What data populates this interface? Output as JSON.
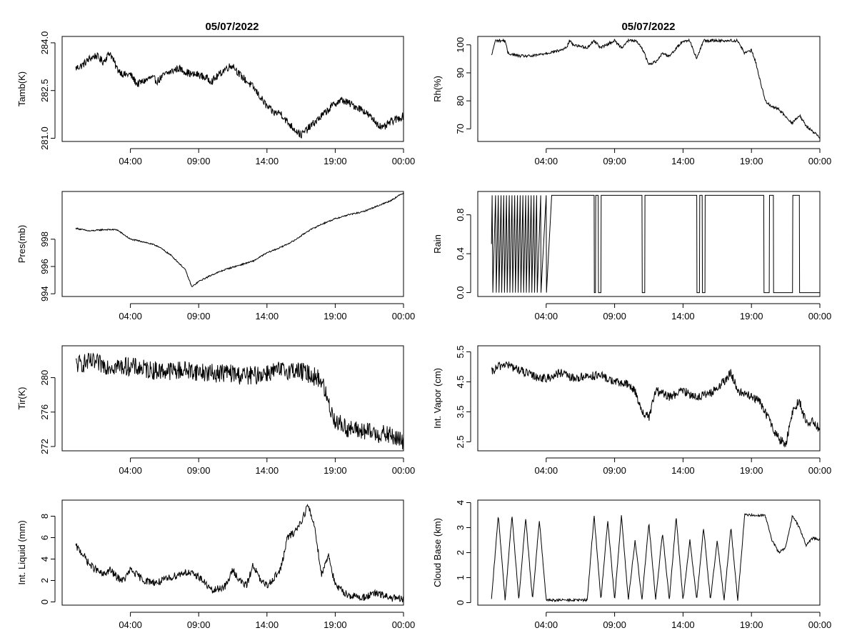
{
  "figure": {
    "left_title": "05/07/2022",
    "right_title": "05/07/2022"
  },
  "chart_data": [
    {
      "type": "line",
      "ylabel": "Tamb(K)",
      "yticks": [
        281.0,
        282.5,
        284.0
      ],
      "yticklabels": [
        "281.0",
        "282.5",
        "284.0"
      ],
      "xlim": [
        -1,
        24
      ],
      "ylim": [
        280.9,
        284.2
      ],
      "xticks": [
        4,
        9,
        14,
        19,
        24
      ],
      "xticklabels": [
        "04:00",
        "09:00",
        "14:00",
        "19:00",
        "00:00"
      ],
      "x": [
        0,
        0.5,
        1,
        1.5,
        2,
        2.5,
        3,
        3.5,
        4,
        4.5,
        5,
        5.5,
        6,
        6.5,
        7,
        7.5,
        8,
        8.5,
        9,
        9.5,
        10,
        10.5,
        11,
        11.5,
        12,
        12.5,
        13,
        13.5,
        14,
        14.5,
        15,
        15.5,
        16,
        16.5,
        17,
        17.5,
        18,
        18.5,
        19,
        19.5,
        20,
        20.5,
        21,
        21.5,
        22,
        22.5,
        23,
        23.5,
        24
      ],
      "y": [
        283.2,
        283.3,
        283.5,
        283.6,
        283.4,
        283.7,
        283.2,
        283.0,
        283.0,
        282.7,
        282.8,
        282.9,
        282.8,
        283.0,
        283.1,
        283.2,
        283.1,
        283.0,
        283.0,
        282.9,
        282.8,
        283.0,
        283.2,
        283.3,
        283.0,
        282.8,
        282.6,
        282.3,
        282.0,
        281.8,
        281.8,
        281.5,
        281.3,
        281.1,
        281.3,
        281.5,
        281.7,
        281.9,
        282.1,
        282.2,
        282.1,
        282.0,
        281.9,
        281.7,
        281.5,
        281.3,
        281.5,
        281.6,
        281.7
      ],
      "noise": 0.12
    },
    {
      "type": "line",
      "ylabel": "Pres(mb)",
      "yticks": [
        994,
        996,
        998
      ],
      "yticklabels": [
        "994",
        "996",
        "998"
      ],
      "xlim": [
        -1,
        24
      ],
      "ylim": [
        993.8,
        1001.5
      ],
      "xticks": [
        4,
        9,
        14,
        19,
        24
      ],
      "xticklabels": [
        "04:00",
        "09:00",
        "14:00",
        "19:00",
        "00:00"
      ],
      "x": [
        0,
        1,
        2,
        3,
        4,
        5,
        6,
        7,
        8,
        8.5,
        9,
        10,
        11,
        12,
        13,
        14,
        15,
        16,
        17,
        18,
        19,
        20,
        21,
        22,
        23,
        24
      ],
      "y": [
        998.8,
        998.6,
        998.7,
        998.7,
        998.0,
        997.8,
        997.5,
        996.8,
        995.8,
        994.5,
        994.9,
        995.4,
        995.8,
        996.1,
        996.4,
        997.0,
        997.4,
        997.9,
        998.6,
        999.1,
        999.5,
        999.8,
        1000.0,
        1000.4,
        1000.8,
        1001.4
      ],
      "noise": 0.05
    },
    {
      "type": "line",
      "ylabel": "Tir(K)",
      "yticks": [
        272,
        276,
        280
      ],
      "yticklabels": [
        "272",
        "276",
        "280"
      ],
      "xlim": [
        -1,
        24
      ],
      "ylim": [
        271.5,
        283.7
      ],
      "xticks": [
        4,
        9,
        14,
        19,
        24
      ],
      "xticklabels": [
        "04:00",
        "09:00",
        "14:00",
        "19:00",
        "00:00"
      ],
      "x": [
        0,
        1,
        2,
        3,
        4,
        5,
        6,
        7,
        8,
        9,
        10,
        11,
        12,
        13,
        14,
        15,
        16,
        17,
        18,
        18.5,
        19,
        19.5,
        20,
        21,
        22,
        23,
        24
      ],
      "y": [
        281.5,
        281.8,
        281.5,
        281.3,
        281.3,
        281.0,
        280.8,
        280.8,
        280.9,
        280.7,
        280.5,
        280.6,
        280.3,
        280.2,
        280.6,
        280.8,
        280.9,
        280.5,
        279.7,
        277.0,
        275.0,
        274.5,
        274.0,
        273.8,
        273.5,
        273.3,
        272.5
      ],
      "noise": 1.1
    },
    {
      "type": "line",
      "ylabel": "Int. Liquid (mm)",
      "yticks": [
        0,
        2,
        4,
        6,
        8
      ],
      "yticklabels": [
        "0",
        "2",
        "4",
        "6",
        "8"
      ],
      "xlim": [
        -1,
        24
      ],
      "ylim": [
        -0.3,
        9.5
      ],
      "xticks": [
        4,
        9,
        14,
        19,
        24
      ],
      "xticklabels": [
        "04:00",
        "09:00",
        "14:00",
        "19:00",
        "00:00"
      ],
      "x": [
        0,
        0.5,
        1,
        2,
        2.5,
        3,
        3.5,
        4,
        5,
        6,
        7,
        8,
        9,
        10,
        11,
        11.5,
        12,
        12.5,
        13,
        13.5,
        14,
        15,
        15.5,
        16,
        16.5,
        17,
        17.5,
        18,
        18.5,
        19,
        20,
        21,
        22,
        23,
        24
      ],
      "y": [
        5.2,
        4.5,
        3.5,
        2.5,
        3.0,
        2.3,
        2.0,
        3.0,
        2.0,
        1.8,
        2.3,
        2.8,
        2.4,
        1.0,
        1.5,
        3.0,
        2.0,
        1.5,
        3.5,
        2.0,
        1.5,
        3.0,
        6.0,
        6.5,
        7.5,
        9.0,
        7.0,
        2.5,
        4.5,
        1.5,
        0.6,
        0.4,
        0.8,
        0.4,
        0.2
      ],
      "noise": 0.35
    },
    {
      "type": "line",
      "ylabel": "Rh(%)",
      "yticks": [
        70,
        80,
        90,
        100
      ],
      "yticklabels": [
        "70",
        "80",
        "90",
        "100"
      ],
      "xlim": [
        -1,
        24
      ],
      "ylim": [
        65.5,
        103
      ],
      "xticks": [
        4,
        9,
        14,
        19,
        24
      ],
      "xticklabels": [
        "04:00",
        "09:00",
        "14:00",
        "19:00",
        "00:00"
      ],
      "x": [
        0,
        0.2,
        0.3,
        1,
        1.2,
        2,
        3,
        4,
        5,
        5.5,
        5.7,
        6,
        7,
        7.5,
        8,
        9,
        9.5,
        10,
        10.5,
        11,
        11.5,
        12,
        12.5,
        13,
        14,
        14.5,
        15,
        15.5,
        16,
        17,
        18,
        18.5,
        19,
        19.3,
        20,
        20.5,
        21,
        22,
        22.5,
        23,
        23.5,
        24
      ],
      "y": [
        96,
        100,
        101.5,
        101.5,
        97,
        96,
        96,
        97,
        98,
        99,
        101.5,
        100,
        99,
        101.5,
        99,
        101.5,
        99,
        101.5,
        101.5,
        99,
        93,
        94,
        97,
        96,
        101.5,
        101.5,
        95,
        101.5,
        101.5,
        101.5,
        101.5,
        97,
        98,
        94,
        80,
        78,
        77,
        72,
        75,
        71,
        69,
        67
      ],
      "noise": 0.5
    },
    {
      "type": "line",
      "ylabel": "Rain",
      "yticks": [
        0.0,
        0.4,
        0.8
      ],
      "yticklabels": [
        "0.0",
        "0.4",
        "0.8"
      ],
      "xlim": [
        -1,
        24
      ],
      "ylim": [
        -0.04,
        1.04
      ],
      "xticks": [
        4,
        9,
        14,
        19,
        24
      ],
      "xticklabels": [
        "04:00",
        "09:00",
        "14:00",
        "19:00",
        "00:00"
      ],
      "x": [
        0,
        0.05,
        0.1,
        0.3,
        0.35,
        0.5,
        0.55,
        0.7,
        0.75,
        0.9,
        0.95,
        1.1,
        1.15,
        1.3,
        1.35,
        1.5,
        1.55,
        1.7,
        1.75,
        1.9,
        1.95,
        2.1,
        2.15,
        2.3,
        2.35,
        2.5,
        2.55,
        2.7,
        2.75,
        2.9,
        2.95,
        3.1,
        3.15,
        3.3,
        3.35,
        3.6,
        3.62,
        4.0,
        4.02,
        4.4,
        4.42,
        7.5,
        7.52,
        7.6,
        7.62,
        7.8,
        7.82,
        8.0,
        8.02,
        8.4,
        8.42,
        11.0,
        11.02,
        11.2,
        11.22,
        11.8,
        11.82,
        15.0,
        15.02,
        15.2,
        15.22,
        15.4,
        15.42,
        15.6,
        15.62,
        19.9,
        19.92,
        20.3,
        20.32,
        20.6,
        20.62,
        22.0,
        22.02,
        22.5,
        22.52,
        24
      ],
      "y": [
        0.5,
        1,
        0,
        1,
        0,
        1,
        0,
        1,
        0,
        1,
        0,
        1,
        0,
        1,
        0,
        1,
        0,
        1,
        0,
        1,
        0,
        1,
        0,
        1,
        0,
        1,
        0,
        1,
        0,
        1,
        0,
        1,
        0,
        1,
        0,
        1,
        0,
        1,
        0,
        1,
        1,
        1,
        0,
        0,
        1,
        1,
        0,
        0,
        1,
        1,
        1,
        1,
        0,
        0,
        1,
        1,
        1,
        1,
        0,
        0,
        1,
        1,
        0,
        0,
        1,
        1,
        0,
        0,
        1,
        1,
        0,
        0,
        1,
        1,
        0,
        0
      ],
      "noise": 0
    },
    {
      "type": "line",
      "ylabel": "Int. Vapor (cm)",
      "yticks": [
        2.5,
        3.5,
        4.5,
        5.5
      ],
      "yticklabels": [
        "2.5",
        "3.5",
        "4.5",
        "5.5"
      ],
      "xlim": [
        -1,
        24
      ],
      "ylim": [
        2.2,
        5.7
      ],
      "xticks": [
        4,
        9,
        14,
        19,
        24
      ],
      "xticklabels": [
        "04:00",
        "09:00",
        "14:00",
        "19:00",
        "00:00"
      ],
      "x": [
        0,
        0.5,
        1,
        1.5,
        2,
        3,
        4,
        5,
        6,
        7,
        8,
        9,
        10,
        10.5,
        11,
        11.5,
        12,
        13,
        14,
        15,
        16,
        17,
        17.5,
        18,
        19,
        19.5,
        20,
        20.5,
        21,
        21.5,
        22,
        22.5,
        23,
        23.5,
        24
      ],
      "y": [
        4.8,
        5.0,
        5.1,
        5.0,
        4.9,
        4.7,
        4.6,
        4.8,
        4.6,
        4.7,
        4.7,
        4.5,
        4.4,
        4.2,
        3.5,
        3.3,
        4.2,
        4.0,
        4.2,
        4.0,
        4.1,
        4.5,
        4.8,
        4.2,
        4.0,
        3.9,
        3.5,
        3.0,
        2.6,
        2.4,
        3.5,
        3.9,
        3.1,
        3.2,
        2.9
      ],
      "noise": 0.15
    },
    {
      "type": "line",
      "ylabel": "Cloud Base (km)",
      "yticks": [
        0,
        1,
        2,
        3,
        4
      ],
      "yticklabels": [
        "0",
        "1",
        "2",
        "3",
        "4"
      ],
      "xlim": [
        -1,
        24
      ],
      "ylim": [
        -0.1,
        4.1
      ],
      "xticks": [
        4,
        9,
        14,
        19,
        24
      ],
      "xticklabels": [
        "04:00",
        "09:00",
        "14:00",
        "19:00",
        "00:00"
      ],
      "x": [
        0,
        0.5,
        1,
        1.5,
        2,
        2.5,
        3,
        3.5,
        4,
        5,
        6,
        7,
        7.5,
        8,
        8.5,
        9,
        9.5,
        10,
        10.5,
        11,
        11.5,
        12,
        12.5,
        13,
        13.5,
        14,
        14.5,
        15,
        15.5,
        16,
        16.5,
        17,
        17.5,
        18,
        18.5,
        19,
        19.5,
        20,
        20.5,
        21,
        21.5,
        22,
        22.5,
        23,
        23.5,
        24
      ],
      "y": [
        0.1,
        3.5,
        0.1,
        3.5,
        0.1,
        3.4,
        0.1,
        3.3,
        0.1,
        0.1,
        0.1,
        0.1,
        3.5,
        0.1,
        3.3,
        0.1,
        3.5,
        0.1,
        2.5,
        0.1,
        3.2,
        0.1,
        2.8,
        0.1,
        3.4,
        0.1,
        2.5,
        0.1,
        3.0,
        0.1,
        2.5,
        0.1,
        3.0,
        0.1,
        3.5,
        3.5,
        3.5,
        3.5,
        2.5,
        2.0,
        2.2,
        3.5,
        3.0,
        2.3,
        2.6,
        2.5
      ],
      "noise": 0.05
    }
  ]
}
